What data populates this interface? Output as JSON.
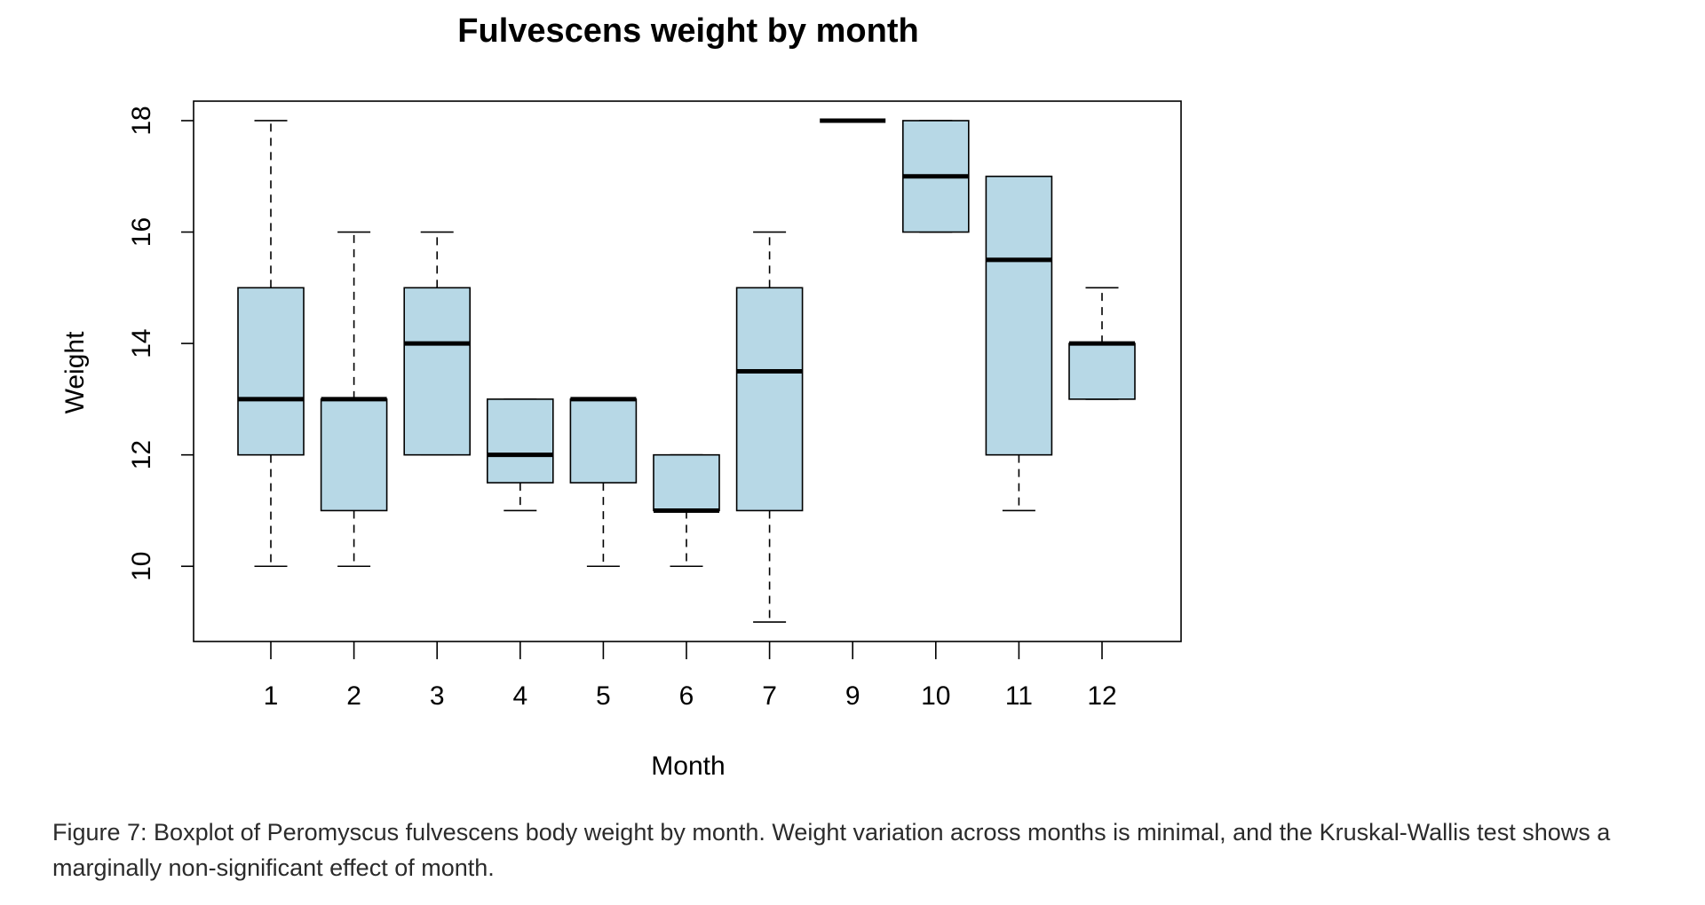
{
  "chart_data": {
    "type": "boxplot",
    "title": "Fulvescens weight by month",
    "xlabel": "Month",
    "ylabel": "Weight",
    "categories": [
      "1",
      "2",
      "3",
      "4",
      "5",
      "6",
      "7",
      "9",
      "10",
      "11",
      "12"
    ],
    "yticks": [
      10,
      12,
      14,
      16,
      18
    ],
    "ylim": [
      8.65,
      18.35
    ],
    "grid": false,
    "legend": "none",
    "box_fill": "#b7d8e6",
    "box_stroke": "#000000",
    "boxes": [
      {
        "category": "1",
        "whisker_low": 10,
        "q1": 12,
        "median": 13,
        "q3": 15,
        "whisker_high": 18
      },
      {
        "category": "2",
        "whisker_low": 10,
        "q1": 11,
        "median": 13,
        "q3": 13,
        "whisker_high": 16
      },
      {
        "category": "3",
        "whisker_low": 12,
        "q1": 12,
        "median": 14,
        "q3": 15,
        "whisker_high": 16
      },
      {
        "category": "4",
        "whisker_low": 11,
        "q1": 11.5,
        "median": 12,
        "q3": 13,
        "whisker_high": 13
      },
      {
        "category": "5",
        "whisker_low": 10,
        "q1": 11.5,
        "median": 13,
        "q3": 13,
        "whisker_high": 13
      },
      {
        "category": "6",
        "whisker_low": 10,
        "q1": 11,
        "median": 11,
        "q3": 12,
        "whisker_high": 12
      },
      {
        "category": "7",
        "whisker_low": 9,
        "q1": 11,
        "median": 13.5,
        "q3": 15,
        "whisker_high": 16
      },
      {
        "category": "9",
        "whisker_low": 18,
        "q1": 18,
        "median": 18,
        "q3": 18,
        "whisker_high": 18
      },
      {
        "category": "10",
        "whisker_low": 16,
        "q1": 16,
        "median": 17,
        "q3": 18,
        "whisker_high": 18
      },
      {
        "category": "11",
        "whisker_low": 11,
        "q1": 12,
        "median": 15.5,
        "q3": 17,
        "whisker_high": 17
      },
      {
        "category": "12",
        "whisker_low": 13,
        "q1": 13,
        "median": 14,
        "q3": 14,
        "whisker_high": 15
      }
    ]
  },
  "caption": {
    "text": "Figure 7: Boxplot of Peromyscus fulvescens body weight by month. Weight variation across months is minimal, and the Kruskal-Wallis test shows a marginally non-significant effect of month."
  }
}
